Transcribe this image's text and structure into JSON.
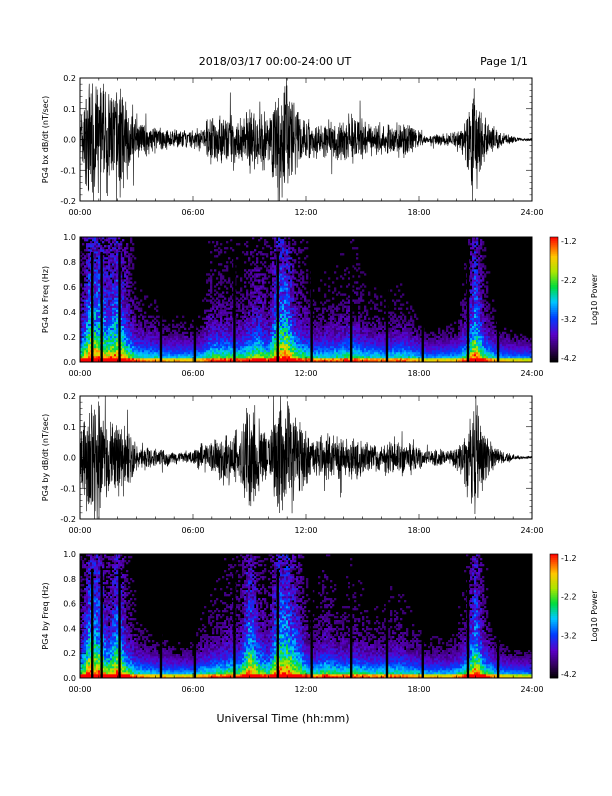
{
  "header": {
    "date_range": "2018/03/17  00:00-24:00 UT",
    "page": "Page 1/1"
  },
  "xlabel": "Universal Time (hh:mm)",
  "x_ticks": [
    "00:00",
    "06:00",
    "12:00",
    "18:00",
    "24:00"
  ],
  "colors": {
    "trace": "#000000",
    "background": "#000000",
    "frame": "#000000"
  },
  "chart_data": [
    {
      "type": "line",
      "ylabel": "PG4 bx dB/dt (nT/sec)",
      "xlim": [
        0,
        24
      ],
      "ylim": [
        -0.2,
        0.2
      ],
      "y_ticks": [
        "0.2",
        "0.1",
        "0.0",
        "-0.1",
        "-0.2"
      ],
      "series": [
        {
          "x": [
            0.0,
            0.5,
            1.0,
            1.5,
            2.0,
            2.5,
            3.0,
            3.5,
            4.0,
            4.5,
            5.0,
            5.5,
            6.0,
            6.5,
            7.0,
            7.5,
            8.0,
            8.5,
            9.0,
            9.5,
            10.0,
            10.5,
            11.0,
            11.5,
            12.0,
            12.5,
            13.0,
            13.5,
            14.0,
            14.5,
            15.0,
            15.5,
            16.0,
            16.5,
            17.0,
            17.5,
            18.0,
            18.5,
            19.0,
            19.5,
            20.0,
            20.5,
            21.0,
            21.5,
            22.0,
            22.5,
            23.0,
            23.5,
            24.0
          ],
          "envelope": [
            0.08,
            0.2,
            0.2,
            0.16,
            0.2,
            0.12,
            0.06,
            0.05,
            0.05,
            0.03,
            0.03,
            0.03,
            0.03,
            0.04,
            0.09,
            0.08,
            0.08,
            0.07,
            0.1,
            0.12,
            0.08,
            0.2,
            0.2,
            0.1,
            0.08,
            0.05,
            0.06,
            0.06,
            0.07,
            0.08,
            0.06,
            0.05,
            0.05,
            0.05,
            0.06,
            0.05,
            0.03,
            0.01,
            0.02,
            0.02,
            0.03,
            0.08,
            0.2,
            0.08,
            0.04,
            0.02,
            0.01,
            0.005,
            0.005
          ]
        }
      ]
    },
    {
      "type": "heatmap",
      "ylabel": "PG4 bx Freq (Hz)",
      "xlim": [
        0,
        24
      ],
      "ylim": [
        0,
        1.0
      ],
      "y_ticks": [
        "1.0",
        "0.8",
        "0.6",
        "0.4",
        "0.2",
        "0.0"
      ],
      "colorbar": {
        "label": "Log10 Power",
        "ticks": [
          "-1.2",
          "-2.2",
          "-3.2",
          "-4.2"
        ],
        "range": [
          -4.2,
          -1.2
        ]
      },
      "gap_times": [
        0.65,
        1.15,
        2.1,
        4.3,
        6.1,
        8.2,
        10.5,
        12.3,
        14.4,
        16.3,
        18.2,
        20.6,
        22.2
      ]
    },
    {
      "type": "line",
      "ylabel": "PG4 by dB/dt (nT/sec)",
      "xlim": [
        0,
        24
      ],
      "ylim": [
        -0.2,
        0.2
      ],
      "y_ticks": [
        "0.2",
        "0.1",
        "0.0",
        "-0.1",
        "-0.2"
      ],
      "series": [
        {
          "x": [
            0.0,
            0.5,
            1.0,
            1.5,
            2.0,
            2.5,
            3.0,
            3.5,
            4.0,
            4.5,
            5.0,
            5.5,
            6.0,
            6.5,
            7.0,
            7.5,
            8.0,
            8.5,
            9.0,
            9.5,
            10.0,
            10.5,
            11.0,
            11.5,
            12.0,
            12.5,
            13.0,
            13.5,
            14.0,
            14.5,
            15.0,
            15.5,
            16.0,
            16.5,
            17.0,
            17.5,
            18.0,
            18.5,
            19.0,
            19.5,
            20.0,
            20.5,
            21.0,
            21.5,
            22.0,
            22.5,
            23.0,
            23.5,
            24.0
          ],
          "envelope": [
            0.08,
            0.2,
            0.2,
            0.12,
            0.2,
            0.1,
            0.05,
            0.04,
            0.03,
            0.03,
            0.02,
            0.02,
            0.02,
            0.05,
            0.06,
            0.07,
            0.09,
            0.08,
            0.2,
            0.12,
            0.08,
            0.2,
            0.2,
            0.15,
            0.08,
            0.05,
            0.09,
            0.07,
            0.06,
            0.07,
            0.06,
            0.05,
            0.05,
            0.06,
            0.06,
            0.05,
            0.04,
            0.02,
            0.03,
            0.02,
            0.04,
            0.08,
            0.2,
            0.08,
            0.04,
            0.02,
            0.01,
            0.005,
            0.005
          ]
        }
      ]
    },
    {
      "type": "heatmap",
      "ylabel": "PG4 by Freq (Hz)",
      "xlim": [
        0,
        24
      ],
      "ylim": [
        0,
        1.0
      ],
      "y_ticks": [
        "1.0",
        "0.8",
        "0.6",
        "0.4",
        "0.2",
        "0.0"
      ],
      "colorbar": {
        "label": "Log10 Power",
        "ticks": [
          "-1.2",
          "-2.2",
          "-3.2",
          "-4.2"
        ],
        "range": [
          -4.2,
          -1.2
        ]
      },
      "gap_times": [
        0.65,
        1.15,
        2.1,
        4.3,
        6.1,
        8.2,
        10.5,
        12.3,
        14.4,
        16.3,
        18.2,
        20.6,
        22.2
      ]
    }
  ]
}
